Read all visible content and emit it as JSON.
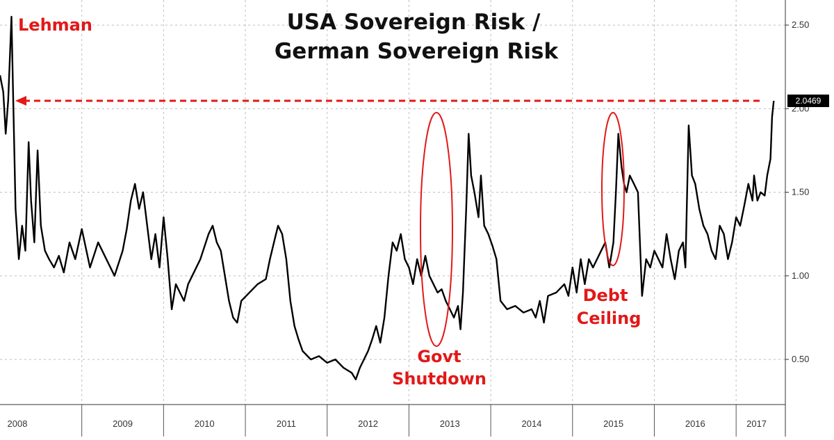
{
  "chart_data": {
    "type": "line",
    "title": "USA Sovereign Risk / German Sovereign Risk",
    "title_lines": [
      "USA Sovereign Risk /",
      "German Sovereign Risk"
    ],
    "xlabel": "",
    "ylabel": "",
    "x_categories": [
      "2008",
      "2009",
      "2010",
      "2011",
      "2012",
      "2013",
      "2014",
      "2015",
      "2016",
      "2017"
    ],
    "ylim": [
      0.23,
      2.65
    ],
    "y_ticks": [
      "0.50",
      "1.00",
      "1.50",
      "2.00",
      "2.50"
    ],
    "grid": true,
    "last_value": "2.0469",
    "series": [
      {
        "color": "#000000",
        "points": [
          [
            2008.0,
            2.2
          ],
          [
            2008.04,
            2.1
          ],
          [
            2008.07,
            1.85
          ],
          [
            2008.1,
            2.05
          ],
          [
            2008.14,
            2.55
          ],
          [
            2008.16,
            2.1
          ],
          [
            2008.19,
            1.4
          ],
          [
            2008.23,
            1.1
          ],
          [
            2008.27,
            1.3
          ],
          [
            2008.31,
            1.15
          ],
          [
            2008.35,
            1.8
          ],
          [
            2008.38,
            1.45
          ],
          [
            2008.42,
            1.2
          ],
          [
            2008.46,
            1.75
          ],
          [
            2008.5,
            1.3
          ],
          [
            2008.55,
            1.15
          ],
          [
            2008.6,
            1.1
          ],
          [
            2008.66,
            1.05
          ],
          [
            2008.72,
            1.12
          ],
          [
            2008.78,
            1.02
          ],
          [
            2008.85,
            1.2
          ],
          [
            2008.92,
            1.1
          ],
          [
            2009.0,
            1.28
          ],
          [
            2009.1,
            1.05
          ],
          [
            2009.2,
            1.2
          ],
          [
            2009.3,
            1.1
          ],
          [
            2009.4,
            1.0
          ],
          [
            2009.5,
            1.15
          ],
          [
            2009.55,
            1.28
          ],
          [
            2009.6,
            1.45
          ],
          [
            2009.65,
            1.55
          ],
          [
            2009.7,
            1.4
          ],
          [
            2009.75,
            1.5
          ],
          [
            2009.8,
            1.3
          ],
          [
            2009.85,
            1.1
          ],
          [
            2009.9,
            1.25
          ],
          [
            2009.95,
            1.05
          ],
          [
            2010.0,
            1.35
          ],
          [
            2010.05,
            1.1
          ],
          [
            2010.1,
            0.8
          ],
          [
            2010.15,
            0.95
          ],
          [
            2010.2,
            0.9
          ],
          [
            2010.25,
            0.85
          ],
          [
            2010.3,
            0.95
          ],
          [
            2010.35,
            1.0
          ],
          [
            2010.45,
            1.1
          ],
          [
            2010.55,
            1.25
          ],
          [
            2010.6,
            1.3
          ],
          [
            2010.65,
            1.2
          ],
          [
            2010.7,
            1.15
          ],
          [
            2010.75,
            1.0
          ],
          [
            2010.8,
            0.85
          ],
          [
            2010.85,
            0.75
          ],
          [
            2010.9,
            0.72
          ],
          [
            2010.95,
            0.85
          ],
          [
            2011.05,
            0.9
          ],
          [
            2011.15,
            0.95
          ],
          [
            2011.25,
            0.98
          ],
          [
            2011.3,
            1.1
          ],
          [
            2011.35,
            1.2
          ],
          [
            2011.4,
            1.3
          ],
          [
            2011.45,
            1.25
          ],
          [
            2011.5,
            1.1
          ],
          [
            2011.55,
            0.85
          ],
          [
            2011.6,
            0.7
          ],
          [
            2011.65,
            0.62
          ],
          [
            2011.7,
            0.55
          ],
          [
            2011.8,
            0.5
          ],
          [
            2011.9,
            0.52
          ],
          [
            2012.0,
            0.48
          ],
          [
            2012.1,
            0.5
          ],
          [
            2012.2,
            0.45
          ],
          [
            2012.3,
            0.42
          ],
          [
            2012.35,
            0.38
          ],
          [
            2012.4,
            0.45
          ],
          [
            2012.45,
            0.5
          ],
          [
            2012.5,
            0.55
          ],
          [
            2012.55,
            0.62
          ],
          [
            2012.6,
            0.7
          ],
          [
            2012.65,
            0.6
          ],
          [
            2012.7,
            0.75
          ],
          [
            2012.75,
            1.0
          ],
          [
            2012.8,
            1.2
          ],
          [
            2012.85,
            1.15
          ],
          [
            2012.9,
            1.25
          ],
          [
            2012.95,
            1.1
          ],
          [
            2013.0,
            1.05
          ],
          [
            2013.05,
            0.95
          ],
          [
            2013.1,
            1.1
          ],
          [
            2013.15,
            1.0
          ],
          [
            2013.2,
            1.12
          ],
          [
            2013.25,
            1.0
          ],
          [
            2013.3,
            0.95
          ],
          [
            2013.35,
            0.9
          ],
          [
            2013.4,
            0.92
          ],
          [
            2013.45,
            0.85
          ],
          [
            2013.5,
            0.8
          ],
          [
            2013.55,
            0.75
          ],
          [
            2013.6,
            0.82
          ],
          [
            2013.63,
            0.68
          ],
          [
            2013.66,
            0.9
          ],
          [
            2013.7,
            1.4
          ],
          [
            2013.73,
            1.85
          ],
          [
            2013.76,
            1.6
          ],
          [
            2013.8,
            1.5
          ],
          [
            2013.85,
            1.35
          ],
          [
            2013.88,
            1.6
          ],
          [
            2013.92,
            1.3
          ],
          [
            2013.97,
            1.25
          ],
          [
            2014.02,
            1.18
          ],
          [
            2014.07,
            1.1
          ],
          [
            2014.12,
            0.85
          ],
          [
            2014.2,
            0.8
          ],
          [
            2014.3,
            0.82
          ],
          [
            2014.4,
            0.78
          ],
          [
            2014.5,
            0.8
          ],
          [
            2014.55,
            0.75
          ],
          [
            2014.6,
            0.85
          ],
          [
            2014.65,
            0.72
          ],
          [
            2014.7,
            0.88
          ],
          [
            2014.8,
            0.9
          ],
          [
            2014.9,
            0.95
          ],
          [
            2014.95,
            0.88
          ],
          [
            2015.0,
            1.05
          ],
          [
            2015.05,
            0.9
          ],
          [
            2015.1,
            1.1
          ],
          [
            2015.15,
            0.95
          ],
          [
            2015.2,
            1.1
          ],
          [
            2015.25,
            1.05
          ],
          [
            2015.3,
            1.1
          ],
          [
            2015.35,
            1.15
          ],
          [
            2015.4,
            1.2
          ],
          [
            2015.45,
            1.05
          ],
          [
            2015.5,
            1.2
          ],
          [
            2015.53,
            1.5
          ],
          [
            2015.56,
            1.85
          ],
          [
            2015.6,
            1.65
          ],
          [
            2015.63,
            1.55
          ],
          [
            2015.66,
            1.5
          ],
          [
            2015.7,
            1.6
          ],
          [
            2015.75,
            1.55
          ],
          [
            2015.8,
            1.5
          ],
          [
            2015.82,
            1.25
          ],
          [
            2015.85,
            0.88
          ],
          [
            2015.9,
            1.1
          ],
          [
            2015.95,
            1.05
          ],
          [
            2016.0,
            1.15
          ],
          [
            2016.05,
            1.1
          ],
          [
            2016.1,
            1.05
          ],
          [
            2016.15,
            1.25
          ],
          [
            2016.2,
            1.1
          ],
          [
            2016.25,
            0.98
          ],
          [
            2016.3,
            1.15
          ],
          [
            2016.35,
            1.2
          ],
          [
            2016.38,
            1.05
          ],
          [
            2016.42,
            1.9
          ],
          [
            2016.46,
            1.6
          ],
          [
            2016.5,
            1.55
          ],
          [
            2016.55,
            1.4
          ],
          [
            2016.6,
            1.3
          ],
          [
            2016.65,
            1.25
          ],
          [
            2016.7,
            1.15
          ],
          [
            2016.75,
            1.1
          ],
          [
            2016.8,
            1.3
          ],
          [
            2016.85,
            1.25
          ],
          [
            2016.9,
            1.1
          ],
          [
            2016.95,
            1.2
          ],
          [
            2017.0,
            1.35
          ],
          [
            2017.05,
            1.3
          ],
          [
            2017.1,
            1.42
          ],
          [
            2017.15,
            1.55
          ],
          [
            2017.2,
            1.45
          ],
          [
            2017.22,
            1.6
          ],
          [
            2017.26,
            1.45
          ],
          [
            2017.3,
            1.5
          ],
          [
            2017.35,
            1.48
          ],
          [
            2017.38,
            1.6
          ],
          [
            2017.42,
            1.7
          ],
          [
            2017.44,
            1.95
          ],
          [
            2017.46,
            2.0469
          ]
        ]
      }
    ],
    "reference_line": {
      "value": 2.0469,
      "style": "dashed",
      "color": "#e31818"
    },
    "annotations": [
      {
        "id": "lehman",
        "text": "Lehman",
        "color": "#e31818"
      },
      {
        "id": "govt",
        "lines": [
          "Govt",
          "Shutdown"
        ],
        "color": "#e31818"
      },
      {
        "id": "debt",
        "lines": [
          "Debt",
          "Ceiling"
        ],
        "color": "#e31818"
      }
    ]
  }
}
